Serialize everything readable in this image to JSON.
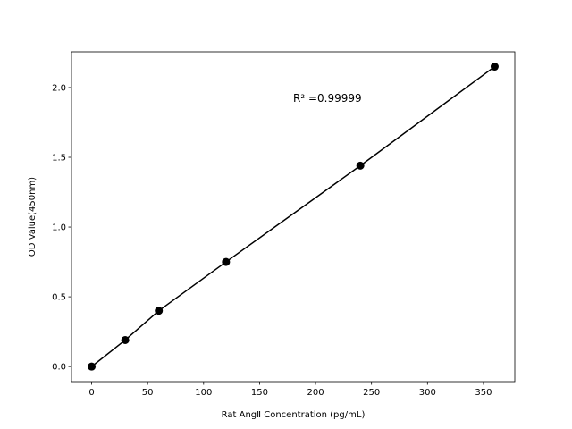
{
  "chart_data": {
    "type": "line",
    "title": "",
    "xlabel": "Rat AngⅡ Concentration (pg/mL)",
    "ylabel": "OD Value(450nm)",
    "xlim": [
      -18,
      378
    ],
    "ylim": [
      -0.108,
      2.256
    ],
    "xticks": [
      0,
      50,
      100,
      150,
      200,
      250,
      300,
      350
    ],
    "xtick_labels": [
      "0",
      "50",
      "100",
      "150",
      "200",
      "250",
      "300",
      "350"
    ],
    "yticks": [
      0.0,
      0.5,
      1.0,
      1.5,
      2.0
    ],
    "ytick_labels": [
      "0.0",
      "0.5",
      "1.0",
      "1.5",
      "2.0"
    ],
    "grid": false,
    "series": [
      {
        "x": [
          0,
          30,
          60,
          120,
          240,
          360
        ],
        "y": [
          0.0,
          0.19,
          0.4,
          0.75,
          1.44,
          2.15
        ],
        "color": "#000000",
        "marker": "circle"
      }
    ],
    "annotations": [
      {
        "text": "R² =0.99999",
        "x": 180,
        "y": 1.93
      }
    ]
  }
}
